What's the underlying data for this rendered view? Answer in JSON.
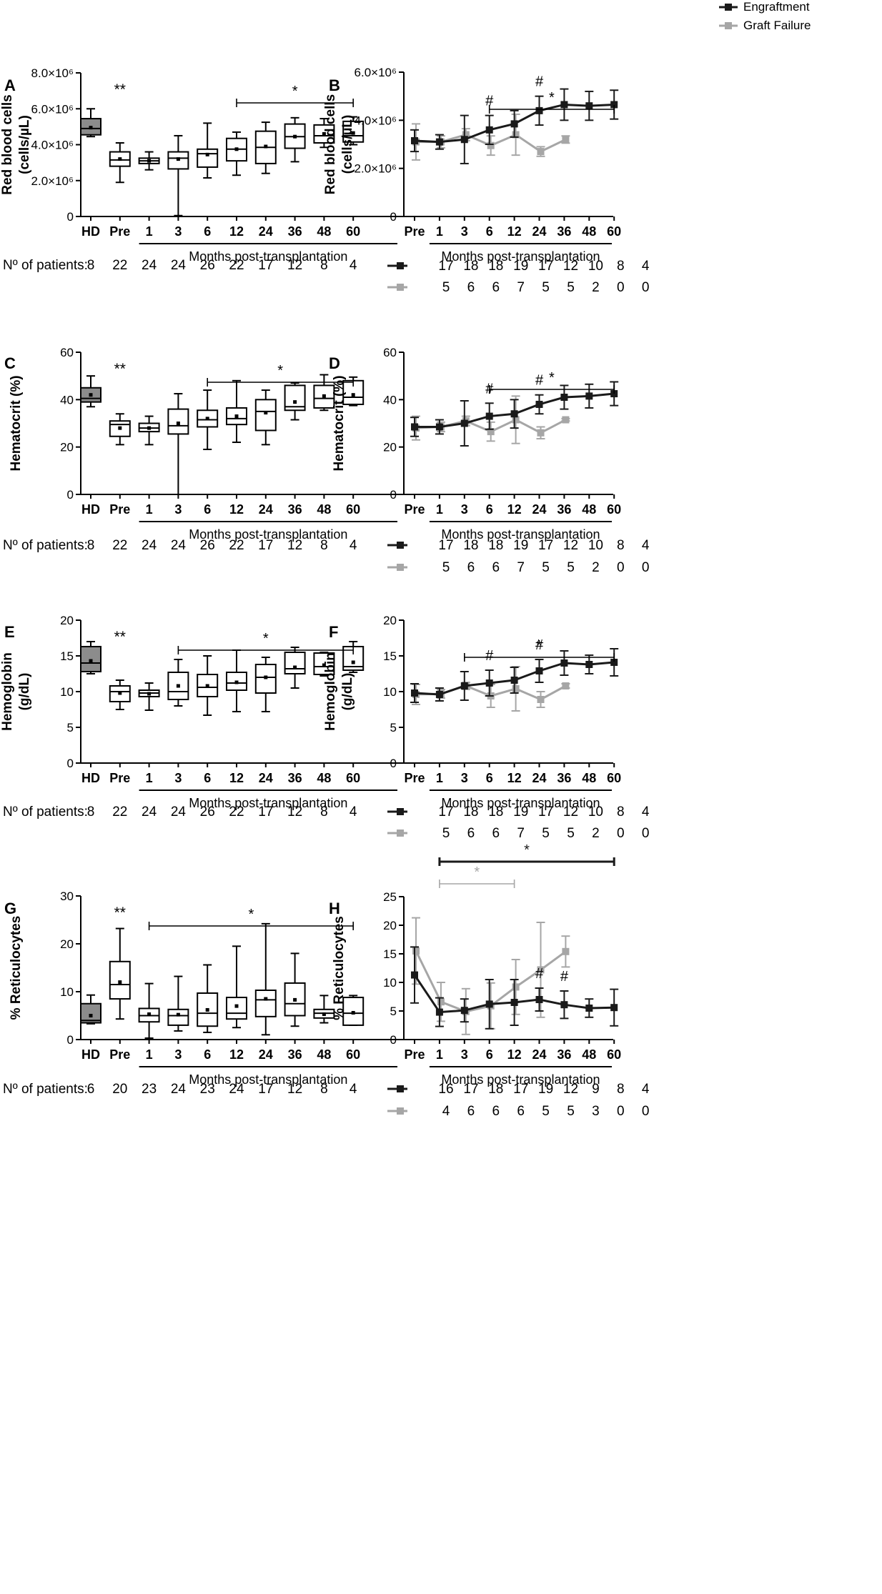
{
  "figure": {
    "legend": {
      "entries": [
        {
          "name": "Engraftment",
          "color": "#1a1a1a"
        },
        {
          "name": "Graft Failure",
          "color": "#a6a6a6"
        }
      ]
    },
    "xaxis_title": "Months post-transplantation",
    "n_label": "Nº of patients:",
    "colors": {
      "hd_fill": "#8c8c8c",
      "engraft": "#1a1a1a",
      "failure": "#a6a6a6",
      "axis": "#000000"
    }
  },
  "chart_data": [
    {
      "panel": "A",
      "type": "boxplot",
      "ylabel_lines": [
        "Red blood cells",
        "(cells/µL)"
      ],
      "categories": [
        "HD",
        "Pre",
        "1",
        "3",
        "6",
        "12",
        "24",
        "36",
        "48",
        "60"
      ],
      "ylim": [
        0,
        8000000
      ],
      "yticks": [
        {
          "v": 0,
          "t": "0"
        },
        {
          "v": 2000000,
          "t": "2.0×10⁶"
        },
        {
          "v": 4000000,
          "t": "4.0×10⁶"
        },
        {
          "v": 6000000,
          "t": "6.0×10⁶"
        },
        {
          "v": 8000000,
          "t": "8.0×10⁶"
        }
      ],
      "boxes": [
        {
          "min": 4450000,
          "q1": 4550000,
          "median": 4900000,
          "q3": 5450000,
          "max": 6000000,
          "mean": 4950000
        },
        {
          "min": 1900000,
          "q1": 2800000,
          "median": 3150000,
          "q3": 3600000,
          "max": 4100000,
          "mean": 3200000
        },
        {
          "min": 2600000,
          "q1": 2950000,
          "median": 3100000,
          "q3": 3250000,
          "max": 3600000,
          "mean": 3100000
        },
        {
          "min": 50000,
          "q1": 2650000,
          "median": 3250000,
          "q3": 3600000,
          "max": 4500000,
          "mean": 3200000
        },
        {
          "min": 2150000,
          "q1": 2750000,
          "median": 3500000,
          "q3": 3750000,
          "max": 5200000,
          "mean": 3450000
        },
        {
          "min": 2300000,
          "q1": 3100000,
          "median": 3750000,
          "q3": 4350000,
          "max": 4700000,
          "mean": 3750000
        },
        {
          "min": 2400000,
          "q1": 2950000,
          "median": 3850000,
          "q3": 4750000,
          "max": 5250000,
          "mean": 3900000
        },
        {
          "min": 3050000,
          "q1": 3800000,
          "median": 4450000,
          "q3": 5150000,
          "max": 5500000,
          "mean": 4450000
        },
        {
          "min": 3850000,
          "q1": 4100000,
          "median": 4500000,
          "q3": 5100000,
          "max": 5450000,
          "mean": 4600000
        },
        {
          "min": 4000000,
          "q1": 4150000,
          "median": 4500000,
          "q3": 5300000,
          "max": 5550000,
          "mean": 4650000
        }
      ],
      "hd_index": 0,
      "annotations": [
        {
          "text": "**",
          "at": 1
        }
      ],
      "brackets": [
        {
          "from": 5,
          "to": 9,
          "text": "*"
        }
      ],
      "n_patients": [
        "8",
        "22",
        "24",
        "24",
        "26",
        "22",
        "17",
        "12",
        "8",
        "4"
      ]
    },
    {
      "panel": "B",
      "type": "line",
      "ylabel_lines": [
        "Red blood cells",
        "(cells/µL)"
      ],
      "categories": [
        "Pre",
        "1",
        "3",
        "6",
        "12",
        "24",
        "36",
        "48",
        "60"
      ],
      "ylim": [
        0,
        6000000
      ],
      "yticks": [
        {
          "v": 0,
          "t": "0"
        },
        {
          "v": 2000000,
          "t": "2.0×10⁶"
        },
        {
          "v": 4000000,
          "t": "4.0×10⁶"
        },
        {
          "v": 6000000,
          "t": "6.0×10⁶"
        }
      ],
      "series": [
        {
          "name": "Engraftment",
          "values": [
            3150000,
            3100000,
            3200000,
            3600000,
            3850000,
            4400000,
            4650000,
            4600000,
            4650000
          ],
          "err": [
            450000,
            300000,
            1000000,
            600000,
            550000,
            600000,
            650000,
            600000,
            600000
          ]
        },
        {
          "name": "Graft Failure",
          "values": [
            3100000,
            3100000,
            3400000,
            2950000,
            3400000,
            2700000,
            3200000,
            null,
            null
          ],
          "err": [
            750000,
            250000,
            250000,
            400000,
            850000,
            200000,
            150000,
            null,
            null
          ]
        }
      ],
      "hash_at": [
        3,
        5
      ],
      "brackets": [
        {
          "from": 3,
          "to": 8,
          "text": "*"
        }
      ],
      "n_engraft": [
        "17",
        "18",
        "18",
        "19",
        "17",
        "12",
        "10",
        "8",
        "4"
      ],
      "n_failure": [
        "5",
        "6",
        "6",
        "7",
        "5",
        "5",
        "2",
        "0",
        "0"
      ]
    },
    {
      "panel": "C",
      "type": "boxplot",
      "ylabel_lines": [
        "Hematocrit (%)"
      ],
      "categories": [
        "HD",
        "Pre",
        "1",
        "3",
        "6",
        "12",
        "24",
        "36",
        "48",
        "60"
      ],
      "ylim": [
        0,
        60
      ],
      "yticks": [
        {
          "v": 0,
          "t": "0"
        },
        {
          "v": 20,
          "t": "20"
        },
        {
          "v": 40,
          "t": "40"
        },
        {
          "v": 60,
          "t": "60"
        }
      ],
      "boxes": [
        {
          "min": 37,
          "q1": 39,
          "median": 40.5,
          "q3": 45,
          "max": 50,
          "mean": 42
        },
        {
          "min": 21,
          "q1": 24.5,
          "median": 29.5,
          "q3": 31,
          "max": 34,
          "mean": 28
        },
        {
          "min": 21,
          "q1": 26.5,
          "median": 28,
          "q3": 30,
          "max": 33,
          "mean": 28
        },
        {
          "min": 0,
          "q1": 25.5,
          "median": 29,
          "q3": 36,
          "max": 42.5,
          "mean": 30
        },
        {
          "min": 19,
          "q1": 28.5,
          "median": 31.5,
          "q3": 35.5,
          "max": 44,
          "mean": 32
        },
        {
          "min": 22,
          "q1": 29.5,
          "median": 32,
          "q3": 36.5,
          "max": 48,
          "mean": 33
        },
        {
          "min": 21,
          "q1": 27,
          "median": 35,
          "q3": 40,
          "max": 44,
          "mean": 34.5
        },
        {
          "min": 31.5,
          "q1": 35.5,
          "median": 37,
          "q3": 46,
          "max": 47,
          "mean": 39
        },
        {
          "min": 35.5,
          "q1": 36.5,
          "median": 40.5,
          "q3": 46,
          "max": 50.5,
          "mean": 41.5
        },
        {
          "min": 37.5,
          "q1": 38,
          "median": 41,
          "q3": 48,
          "max": 49.5,
          "mean": 42
        }
      ],
      "hd_index": 0,
      "annotations": [
        {
          "text": "**",
          "at": 1
        }
      ],
      "brackets": [
        {
          "from": 4,
          "to": 9,
          "text": "*"
        }
      ],
      "n_patients": [
        "8",
        "22",
        "24",
        "24",
        "26",
        "22",
        "17",
        "12",
        "8",
        "4"
      ]
    },
    {
      "panel": "D",
      "type": "line",
      "ylabel_lines": [
        "Hematocrit (%)"
      ],
      "categories": [
        "Pre",
        "1",
        "3",
        "6",
        "12",
        "24",
        "36",
        "48",
        "60"
      ],
      "ylim": [
        0,
        60
      ],
      "yticks": [
        {
          "v": 0,
          "t": "0"
        },
        {
          "v": 20,
          "t": "20"
        },
        {
          "v": 40,
          "t": "40"
        },
        {
          "v": 60,
          "t": "60"
        }
      ],
      "series": [
        {
          "name": "Engraftment",
          "values": [
            28.5,
            28.5,
            30,
            33,
            34,
            38,
            41,
            41.5,
            42.5
          ],
          "err": [
            4,
            3,
            9.5,
            5.5,
            6,
            4,
            5,
            5,
            5
          ]
        },
        {
          "name": "Graft Failure",
          "values": [
            28,
            28.5,
            31,
            26.5,
            31.5,
            26,
            31.5,
            null,
            null
          ],
          "err": [
            5,
            2,
            2,
            4,
            10,
            2.5,
            0.5,
            null,
            null
          ]
        }
      ],
      "hash_at": [
        3,
        5
      ],
      "brackets": [
        {
          "from": 3,
          "to": 8,
          "text": "*"
        }
      ],
      "n_engraft": [
        "17",
        "18",
        "18",
        "19",
        "17",
        "12",
        "10",
        "8",
        "4"
      ],
      "n_failure": [
        "5",
        "6",
        "6",
        "7",
        "5",
        "5",
        "2",
        "0",
        "0"
      ]
    },
    {
      "panel": "E",
      "type": "boxplot",
      "ylabel_lines": [
        "Hemoglobin",
        "(g/dL)"
      ],
      "categories": [
        "HD",
        "Pre",
        "1",
        "3",
        "6",
        "12",
        "24",
        "36",
        "48",
        "60"
      ],
      "ylim": [
        0,
        20
      ],
      "yticks": [
        {
          "v": 0,
          "t": "0"
        },
        {
          "v": 5,
          "t": "5"
        },
        {
          "v": 10,
          "t": "10"
        },
        {
          "v": 15,
          "t": "15"
        },
        {
          "v": 20,
          "t": "20"
        }
      ],
      "boxes": [
        {
          "min": 12.5,
          "q1": 12.8,
          "median": 14,
          "q3": 16.3,
          "max": 17,
          "mean": 14.3
        },
        {
          "min": 7.5,
          "q1": 8.6,
          "median": 10,
          "q3": 10.8,
          "max": 11.6,
          "mean": 9.8
        },
        {
          "min": 7.4,
          "q1": 9.3,
          "median": 9.8,
          "q3": 10.2,
          "max": 11.2,
          "mean": 9.7
        },
        {
          "min": 8,
          "q1": 8.9,
          "median": 10,
          "q3": 12.7,
          "max": 14.5,
          "mean": 10.8
        },
        {
          "min": 6.7,
          "q1": 9.3,
          "median": 10.6,
          "q3": 12.4,
          "max": 15,
          "mean": 10.8
        },
        {
          "min": 7.2,
          "q1": 10.2,
          "median": 11.2,
          "q3": 12.7,
          "max": 15.8,
          "mean": 11.3
        },
        {
          "min": 7.2,
          "q1": 9.8,
          "median": 12,
          "q3": 13.8,
          "max": 14.8,
          "mean": 12
        },
        {
          "min": 10.5,
          "q1": 12.5,
          "median": 13.2,
          "q3": 15.5,
          "max": 16.2,
          "mean": 13.4
        },
        {
          "min": 12.2,
          "q1": 12.4,
          "median": 13.5,
          "q3": 15.4,
          "max": 15.5,
          "mean": 13.7
        },
        {
          "min": 12.7,
          "q1": 13,
          "median": 13.5,
          "q3": 16.3,
          "max": 17,
          "mean": 14.1
        }
      ],
      "hd_index": 0,
      "annotations": [
        {
          "text": "**",
          "at": 1
        }
      ],
      "brackets": [
        {
          "from": 3,
          "to": 9,
          "text": "*"
        }
      ],
      "n_patients": [
        "8",
        "22",
        "24",
        "24",
        "26",
        "22",
        "17",
        "12",
        "8",
        "4"
      ]
    },
    {
      "panel": "F",
      "type": "line",
      "ylabel_lines": [
        "Hemoglobin",
        "(g/dL)"
      ],
      "categories": [
        "Pre",
        "1",
        "3",
        "6",
        "12",
        "24",
        "36",
        "48",
        "60"
      ],
      "ylim": [
        0,
        20
      ],
      "yticks": [
        {
          "v": 0,
          "t": "0"
        },
        {
          "v": 5,
          "t": "5"
        },
        {
          "v": 10,
          "t": "10"
        },
        {
          "v": 15,
          "t": "15"
        },
        {
          "v": 20,
          "t": "20"
        }
      ],
      "series": [
        {
          "name": "Engraftment",
          "values": [
            9.8,
            9.6,
            10.8,
            11.2,
            11.6,
            12.9,
            14,
            13.8,
            14.1
          ],
          "err": [
            1.3,
            0.9,
            2,
            1.8,
            1.8,
            1.6,
            1.7,
            1.3,
            1.9
          ]
        },
        {
          "name": "Graft Failure",
          "values": [
            9.6,
            9.7,
            10.8,
            9.4,
            10.4,
            8.9,
            10.8,
            null,
            null
          ],
          "err": [
            1.4,
            0.6,
            0.5,
            1.6,
            3.1,
            1.1,
            0.3,
            null,
            null
          ]
        }
      ],
      "hash_at": [
        3,
        5
      ],
      "brackets": [
        {
          "from": 2,
          "to": 8,
          "text": "*"
        }
      ],
      "n_engraft": [
        "17",
        "18",
        "18",
        "19",
        "17",
        "12",
        "10",
        "8",
        "4"
      ],
      "n_failure": [
        "5",
        "6",
        "6",
        "7",
        "5",
        "5",
        "2",
        "0",
        "0"
      ]
    },
    {
      "panel": "G",
      "type": "boxplot",
      "ylabel_lines": [
        "% Reticulocytes"
      ],
      "categories": [
        "HD",
        "Pre",
        "1",
        "3",
        "6",
        "12",
        "24",
        "36",
        "48",
        "60"
      ],
      "ylim": [
        0,
        30
      ],
      "yticks": [
        {
          "v": 0,
          "t": "0"
        },
        {
          "v": 10,
          "t": "10"
        },
        {
          "v": 20,
          "t": "20"
        },
        {
          "v": 30,
          "t": "30"
        }
      ],
      "boxes": [
        {
          "min": 3.3,
          "q1": 3.5,
          "median": 4,
          "q3": 7.5,
          "max": 9.3,
          "mean": 5
        },
        {
          "min": 4.3,
          "q1": 8.5,
          "median": 11.5,
          "q3": 16.3,
          "max": 23.2,
          "mean": 12
        },
        {
          "min": 0.3,
          "q1": 3.7,
          "median": 5,
          "q3": 6.5,
          "max": 11.7,
          "mean": 5.3
        },
        {
          "min": 1.8,
          "q1": 3,
          "median": 5,
          "q3": 6.3,
          "max": 13.2,
          "mean": 5.2
        },
        {
          "min": 1.5,
          "q1": 2.8,
          "median": 5.5,
          "q3": 9.7,
          "max": 15.6,
          "mean": 6.2
        },
        {
          "min": 2.5,
          "q1": 4.3,
          "median": 5.5,
          "q3": 8.8,
          "max": 19.5,
          "mean": 7
        },
        {
          "min": 1,
          "q1": 4.8,
          "median": 8.3,
          "q3": 10.3,
          "max": 24.2,
          "mean": 8.5
        },
        {
          "min": 2.8,
          "q1": 5,
          "median": 7.5,
          "q3": 11.8,
          "max": 18,
          "mean": 8.3
        },
        {
          "min": 3.5,
          "q1": 4.5,
          "median": 5.5,
          "q3": 6.3,
          "max": 9.2,
          "mean": 5.3
        },
        {
          "min": 3,
          "q1": 3,
          "median": 5.5,
          "q3": 8.8,
          "max": 9.2,
          "mean": 5.6
        }
      ],
      "hd_index": 0,
      "annotations": [
        {
          "text": "**",
          "at": 1
        }
      ],
      "brackets": [
        {
          "from": 2,
          "to": 9,
          "text": "*"
        }
      ],
      "n_patients": [
        "6",
        "20",
        "23",
        "24",
        "23",
        "24",
        "17",
        "12",
        "8",
        "4"
      ]
    },
    {
      "panel": "H",
      "type": "line",
      "ylabel_lines": [
        "% Reticulocytes"
      ],
      "categories": [
        "Pre",
        "1",
        "3",
        "6",
        "12",
        "24",
        "36",
        "48",
        "60"
      ],
      "ylim": [
        0,
        25
      ],
      "yticks": [
        {
          "v": 0,
          "t": "0"
        },
        {
          "v": 5,
          "t": "5"
        },
        {
          "v": 10,
          "t": "10"
        },
        {
          "v": 15,
          "t": "15"
        },
        {
          "v": 20,
          "t": "20"
        },
        {
          "v": 25,
          "t": "25"
        }
      ],
      "series": [
        {
          "name": "Engraftment",
          "values": [
            11.3,
            4.8,
            5.1,
            6.2,
            6.5,
            7,
            6.1,
            5.5,
            5.6
          ],
          "err": [
            4.9,
            2.5,
            2,
            4.3,
            4,
            2,
            2.4,
            1.6,
            3.2
          ]
        },
        {
          "name": "Graft Failure",
          "values": [
            15.5,
            6.6,
            4.9,
            5.9,
            9.2,
            12.2,
            15.4,
            null,
            null
          ],
          "err": [
            5.8,
            3.4,
            4,
            4,
            4.8,
            8.3,
            2.7,
            null,
            null
          ]
        }
      ],
      "hash_at": [
        5,
        6
      ],
      "brackets": [
        {
          "from": 1,
          "to": 8,
          "text": "*",
          "color": "engraft",
          "thick": true
        },
        {
          "from": 1,
          "to": 4,
          "text": "*",
          "color": "failure"
        }
      ],
      "n_engraft": [
        "16",
        "17",
        "18",
        "17",
        "19",
        "12",
        "9",
        "8",
        "4"
      ],
      "n_failure": [
        "4",
        "6",
        "6",
        "6",
        "5",
        "5",
        "3",
        "0",
        "0"
      ]
    }
  ]
}
